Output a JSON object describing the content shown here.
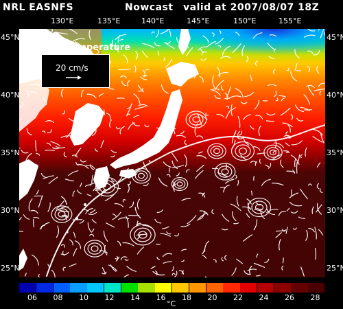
{
  "header": {
    "left": "NRL EASNFS",
    "mid": "Nowcast",
    "right": "valid at 2007/08/07 18Z"
  },
  "map_title": "Surface Temperature",
  "legend": {
    "text": "20 cm/s"
  },
  "longitudes": [
    "130°E",
    "135°E",
    "140°E",
    "145°E",
    "150°E",
    "155°E"
  ],
  "latitudes": [
    "45°N",
    "40°N",
    "35°N",
    "30°N",
    "25°N"
  ],
  "colorbar": {
    "ticks": [
      "06",
      "08",
      "10",
      "12",
      "14",
      "16",
      "18",
      "20",
      "22",
      "24",
      "26",
      "28"
    ],
    "unit": "°C",
    "colors": [
      "#0000b0",
      "#0028e6",
      "#0060ff",
      "#0a9cff",
      "#00c8ff",
      "#00e6c8",
      "#00e000",
      "#a8e000",
      "#ffff00",
      "#ffc800",
      "#ff9600",
      "#ff6400",
      "#ff2800",
      "#e00000",
      "#b40000",
      "#8c0000",
      "#640000",
      "#4a0000"
    ]
  },
  "colors": {
    "land": "#ffffff",
    "ocean_warm": "#4a0505",
    "vectors": "#ffffff"
  }
}
